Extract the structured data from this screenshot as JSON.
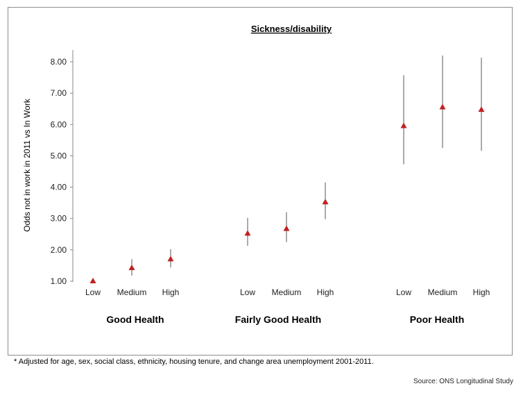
{
  "chart_data": {
    "type": "scatter",
    "title": "Sickness/disability",
    "ylabel": "Odds not in work in 2011 vs In Work",
    "ylim": [
      1.0,
      8.0
    ],
    "yticks": [
      "1.00",
      "2.00",
      "3.00",
      "4.00",
      "5.00",
      "6.00",
      "7.00",
      "8.00"
    ],
    "grid": false,
    "marker_color": "#c0201f",
    "groups": [
      {
        "label": "Good Health",
        "points": [
          {
            "category": "Low",
            "value": 1.0,
            "lower": 1.0,
            "upper": 1.0
          },
          {
            "category": "Medium",
            "value": 1.42,
            "lower": 1.18,
            "upper": 1.7
          },
          {
            "category": "High",
            "value": 1.7,
            "lower": 1.44,
            "upper": 2.02
          }
        ]
      },
      {
        "label": "Fairly Good Health",
        "points": [
          {
            "category": "Low",
            "value": 2.52,
            "lower": 2.13,
            "upper": 3.02
          },
          {
            "category": "Medium",
            "value": 2.67,
            "lower": 2.25,
            "upper": 3.2
          },
          {
            "category": "High",
            "value": 3.52,
            "lower": 2.98,
            "upper": 4.15
          }
        ]
      },
      {
        "label": "Poor Health",
        "points": [
          {
            "category": "Low",
            "value": 5.95,
            "lower": 4.73,
            "upper": 7.57
          },
          {
            "category": "Medium",
            "value": 6.55,
            "lower": 5.25,
            "upper": 8.2
          },
          {
            "category": "High",
            "value": 6.47,
            "lower": 5.16,
            "upper": 8.13
          }
        ]
      }
    ]
  },
  "footnote": "* Adjusted for age, sex, social class, ethnicity, housing tenure, and change area unemployment 2001-2011.",
  "source": "Source: ONS Longitudinal Study"
}
